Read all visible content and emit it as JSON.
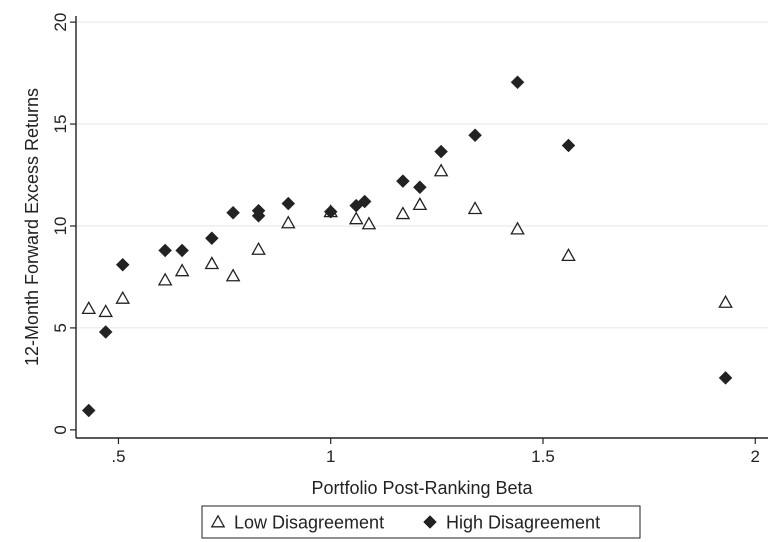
{
  "chart_data": {
    "type": "scatter",
    "xlabel": "Portfolio Post-Ranking Beta",
    "ylabel": "12-Month Forward Excess Returns",
    "xlim": [
      0.4,
      2.03
    ],
    "ylim": [
      -0.4,
      20.3
    ],
    "xticks": [
      {
        "value": 0.5,
        "label": ".5"
      },
      {
        "value": 1.0,
        "label": "1"
      },
      {
        "value": 1.5,
        "label": "1.5"
      },
      {
        "value": 2.0,
        "label": "2"
      }
    ],
    "yticks": [
      {
        "value": 0,
        "label": "0"
      },
      {
        "value": 5,
        "label": "5"
      },
      {
        "value": 10,
        "label": "10"
      },
      {
        "value": 15,
        "label": "15"
      },
      {
        "value": 20,
        "label": "20"
      }
    ],
    "grid": "horizontal",
    "legend": "bottom",
    "series": [
      {
        "name": "Low Disagreement",
        "marker": "hollow-triangle",
        "color": "#222222",
        "points": [
          [
            0.43,
            5.95
          ],
          [
            0.47,
            5.8
          ],
          [
            0.51,
            6.45
          ],
          [
            0.61,
            7.35
          ],
          [
            0.65,
            7.8
          ],
          [
            0.72,
            8.15
          ],
          [
            0.77,
            7.55
          ],
          [
            0.83,
            8.85
          ],
          [
            0.9,
            10.15
          ],
          [
            1.0,
            10.7
          ],
          [
            1.06,
            10.35
          ],
          [
            1.09,
            10.1
          ],
          [
            1.17,
            10.6
          ],
          [
            1.21,
            11.05
          ],
          [
            1.26,
            12.7
          ],
          [
            1.34,
            10.85
          ],
          [
            1.44,
            9.85
          ],
          [
            1.56,
            8.55
          ],
          [
            1.93,
            6.25
          ]
        ]
      },
      {
        "name": "High Disagreement",
        "marker": "filled-diamond",
        "color": "#222222",
        "points": [
          [
            0.43,
            0.95
          ],
          [
            0.47,
            4.8
          ],
          [
            0.51,
            8.1
          ],
          [
            0.61,
            8.8
          ],
          [
            0.65,
            8.8
          ],
          [
            0.72,
            9.4
          ],
          [
            0.77,
            10.65
          ],
          [
            0.83,
            10.5
          ],
          [
            0.83,
            10.75
          ],
          [
            0.9,
            11.1
          ],
          [
            1.0,
            10.7
          ],
          [
            1.06,
            11.0
          ],
          [
            1.08,
            11.2
          ],
          [
            1.17,
            12.2
          ],
          [
            1.21,
            11.9
          ],
          [
            1.26,
            13.65
          ],
          [
            1.34,
            14.45
          ],
          [
            1.44,
            17.05
          ],
          [
            1.56,
            13.95
          ],
          [
            1.93,
            2.55
          ]
        ]
      }
    ]
  }
}
